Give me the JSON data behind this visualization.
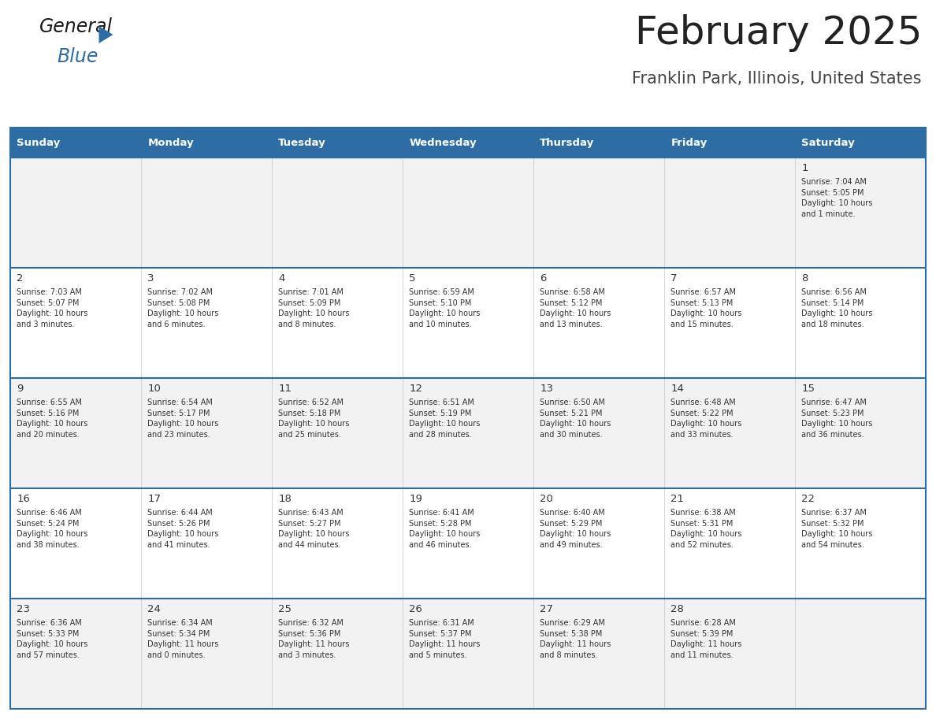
{
  "title": "February 2025",
  "subtitle": "Franklin Park, Illinois, United States",
  "header_bg": "#2E6DA4",
  "header_text_color": "#FFFFFF",
  "cell_bg_odd": "#F2F2F2",
  "cell_bg_even": "#FFFFFF",
  "border_color": "#2E6DA4",
  "text_color": "#333333",
  "day_headers": [
    "Sunday",
    "Monday",
    "Tuesday",
    "Wednesday",
    "Thursday",
    "Friday",
    "Saturday"
  ],
  "weeks": [
    [
      {
        "day": "",
        "info": ""
      },
      {
        "day": "",
        "info": ""
      },
      {
        "day": "",
        "info": ""
      },
      {
        "day": "",
        "info": ""
      },
      {
        "day": "",
        "info": ""
      },
      {
        "day": "",
        "info": ""
      },
      {
        "day": "1",
        "info": "Sunrise: 7:04 AM\nSunset: 5:05 PM\nDaylight: 10 hours\nand 1 minute."
      }
    ],
    [
      {
        "day": "2",
        "info": "Sunrise: 7:03 AM\nSunset: 5:07 PM\nDaylight: 10 hours\nand 3 minutes."
      },
      {
        "day": "3",
        "info": "Sunrise: 7:02 AM\nSunset: 5:08 PM\nDaylight: 10 hours\nand 6 minutes."
      },
      {
        "day": "4",
        "info": "Sunrise: 7:01 AM\nSunset: 5:09 PM\nDaylight: 10 hours\nand 8 minutes."
      },
      {
        "day": "5",
        "info": "Sunrise: 6:59 AM\nSunset: 5:10 PM\nDaylight: 10 hours\nand 10 minutes."
      },
      {
        "day": "6",
        "info": "Sunrise: 6:58 AM\nSunset: 5:12 PM\nDaylight: 10 hours\nand 13 minutes."
      },
      {
        "day": "7",
        "info": "Sunrise: 6:57 AM\nSunset: 5:13 PM\nDaylight: 10 hours\nand 15 minutes."
      },
      {
        "day": "8",
        "info": "Sunrise: 6:56 AM\nSunset: 5:14 PM\nDaylight: 10 hours\nand 18 minutes."
      }
    ],
    [
      {
        "day": "9",
        "info": "Sunrise: 6:55 AM\nSunset: 5:16 PM\nDaylight: 10 hours\nand 20 minutes."
      },
      {
        "day": "10",
        "info": "Sunrise: 6:54 AM\nSunset: 5:17 PM\nDaylight: 10 hours\nand 23 minutes."
      },
      {
        "day": "11",
        "info": "Sunrise: 6:52 AM\nSunset: 5:18 PM\nDaylight: 10 hours\nand 25 minutes."
      },
      {
        "day": "12",
        "info": "Sunrise: 6:51 AM\nSunset: 5:19 PM\nDaylight: 10 hours\nand 28 minutes."
      },
      {
        "day": "13",
        "info": "Sunrise: 6:50 AM\nSunset: 5:21 PM\nDaylight: 10 hours\nand 30 minutes."
      },
      {
        "day": "14",
        "info": "Sunrise: 6:48 AM\nSunset: 5:22 PM\nDaylight: 10 hours\nand 33 minutes."
      },
      {
        "day": "15",
        "info": "Sunrise: 6:47 AM\nSunset: 5:23 PM\nDaylight: 10 hours\nand 36 minutes."
      }
    ],
    [
      {
        "day": "16",
        "info": "Sunrise: 6:46 AM\nSunset: 5:24 PM\nDaylight: 10 hours\nand 38 minutes."
      },
      {
        "day": "17",
        "info": "Sunrise: 6:44 AM\nSunset: 5:26 PM\nDaylight: 10 hours\nand 41 minutes."
      },
      {
        "day": "18",
        "info": "Sunrise: 6:43 AM\nSunset: 5:27 PM\nDaylight: 10 hours\nand 44 minutes."
      },
      {
        "day": "19",
        "info": "Sunrise: 6:41 AM\nSunset: 5:28 PM\nDaylight: 10 hours\nand 46 minutes."
      },
      {
        "day": "20",
        "info": "Sunrise: 6:40 AM\nSunset: 5:29 PM\nDaylight: 10 hours\nand 49 minutes."
      },
      {
        "day": "21",
        "info": "Sunrise: 6:38 AM\nSunset: 5:31 PM\nDaylight: 10 hours\nand 52 minutes."
      },
      {
        "day": "22",
        "info": "Sunrise: 6:37 AM\nSunset: 5:32 PM\nDaylight: 10 hours\nand 54 minutes."
      }
    ],
    [
      {
        "day": "23",
        "info": "Sunrise: 6:36 AM\nSunset: 5:33 PM\nDaylight: 10 hours\nand 57 minutes."
      },
      {
        "day": "24",
        "info": "Sunrise: 6:34 AM\nSunset: 5:34 PM\nDaylight: 11 hours\nand 0 minutes."
      },
      {
        "day": "25",
        "info": "Sunrise: 6:32 AM\nSunset: 5:36 PM\nDaylight: 11 hours\nand 3 minutes."
      },
      {
        "day": "26",
        "info": "Sunrise: 6:31 AM\nSunset: 5:37 PM\nDaylight: 11 hours\nand 5 minutes."
      },
      {
        "day": "27",
        "info": "Sunrise: 6:29 AM\nSunset: 5:38 PM\nDaylight: 11 hours\nand 8 minutes."
      },
      {
        "day": "28",
        "info": "Sunrise: 6:28 AM\nSunset: 5:39 PM\nDaylight: 11 hours\nand 11 minutes."
      },
      {
        "day": "",
        "info": ""
      }
    ]
  ],
  "logo_text_general": "General",
  "logo_text_blue": "Blue",
  "logo_color_general": "#1A1A1A",
  "logo_color_blue": "#2E6DA4",
  "logo_triangle_color": "#2E6DA4",
  "fig_width": 11.88,
  "fig_height": 9.18,
  "dpi": 100
}
